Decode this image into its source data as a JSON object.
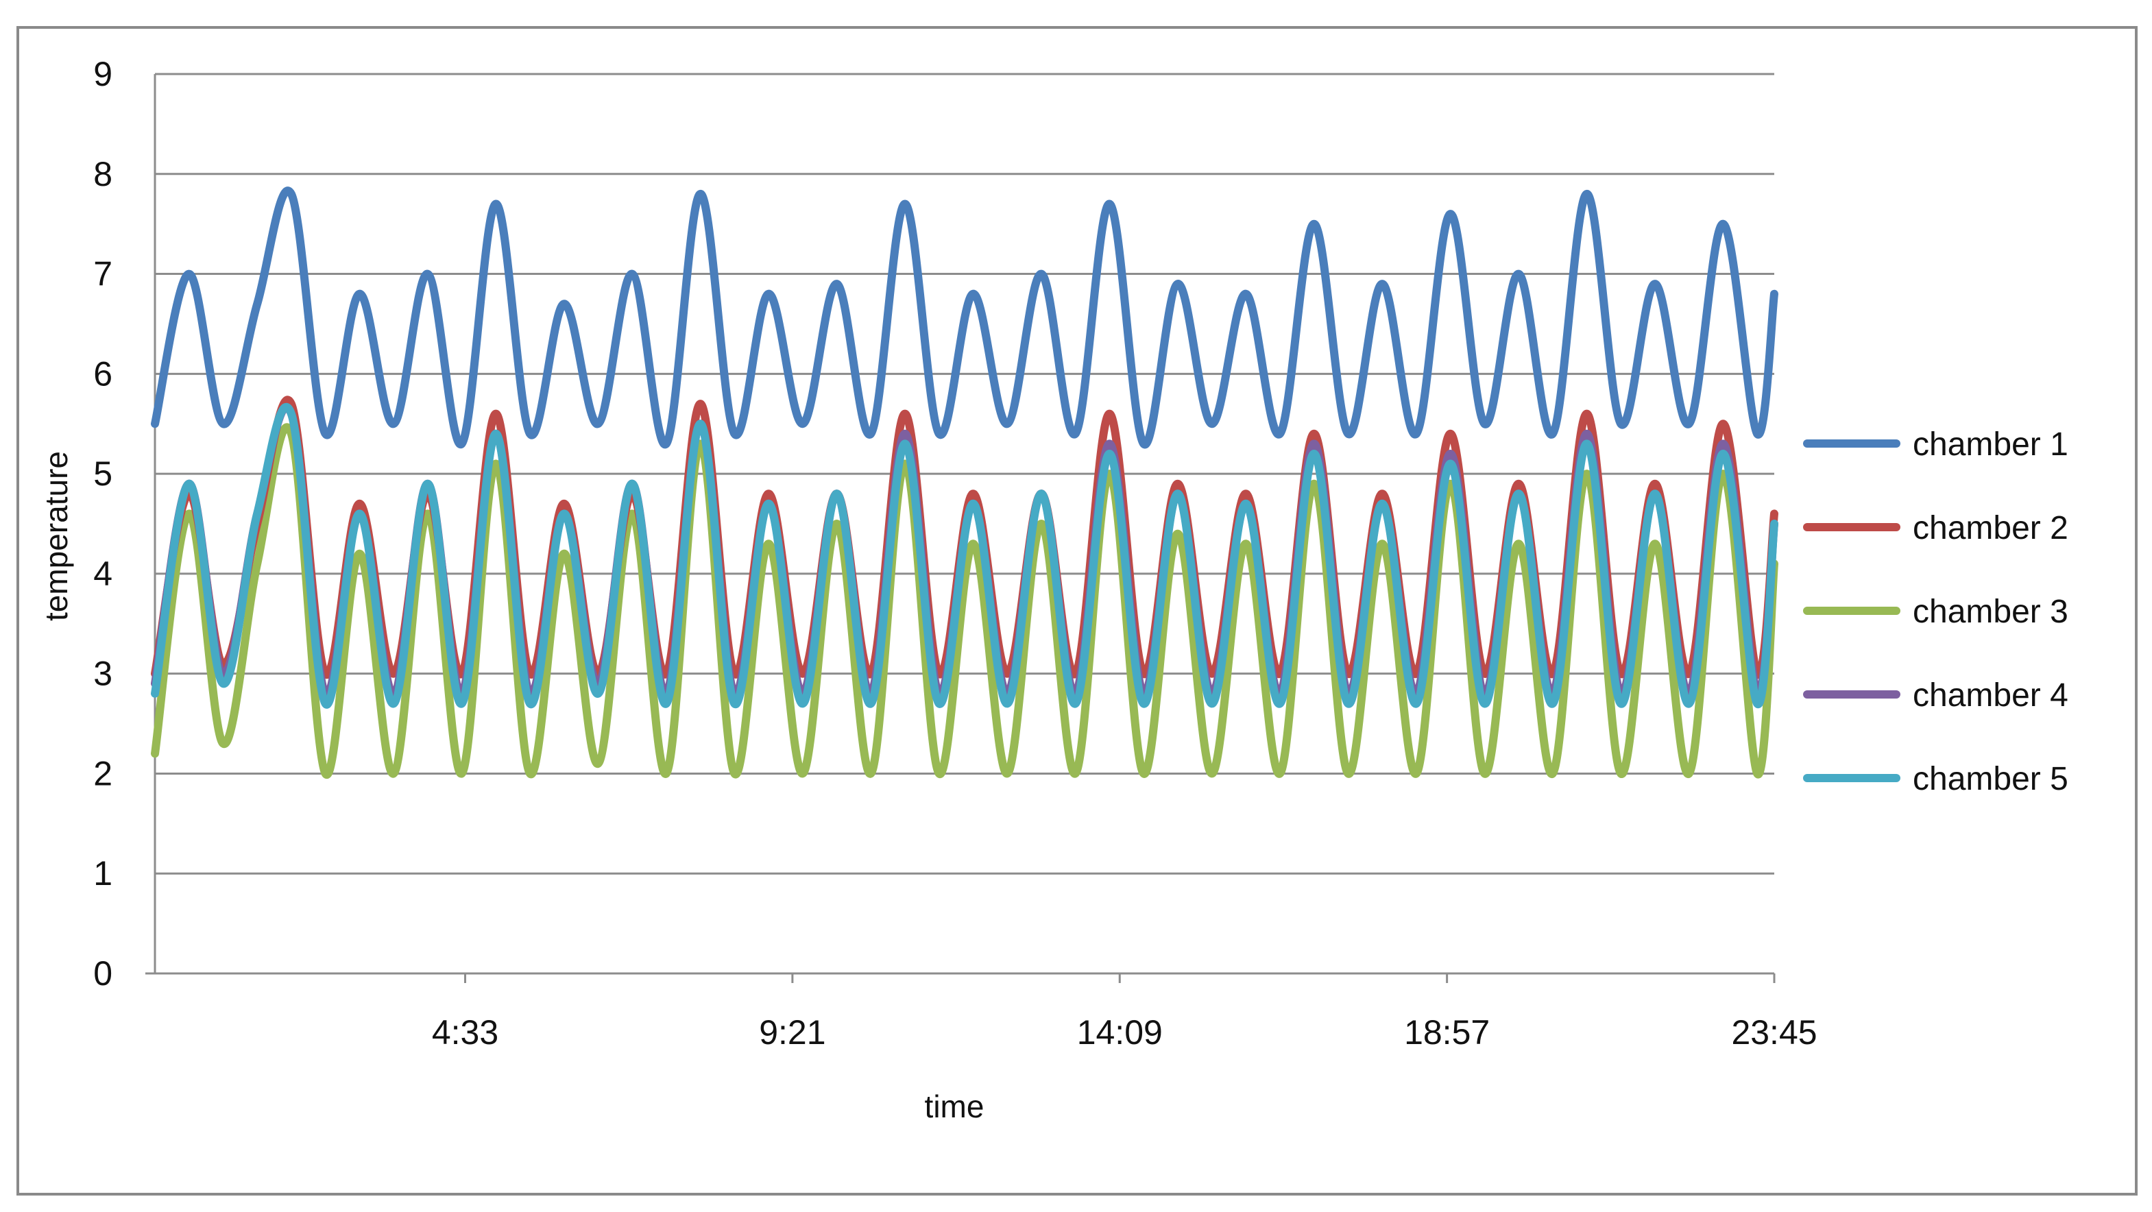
{
  "chart_data": {
    "type": "line",
    "xlabel": "time",
    "ylabel": "temperature",
    "ylim": [
      0,
      9
    ],
    "yticks": [
      0,
      1,
      2,
      3,
      4,
      5,
      6,
      7,
      8,
      9
    ],
    "x_tick_labels": [
      "4:33",
      "9:21",
      "14:09",
      "18:57",
      "23:45"
    ],
    "grid": true,
    "legend_position": "right",
    "x": [
      "0:00",
      "0:30",
      "1:00",
      "1:30",
      "2:00",
      "2:30",
      "3:00",
      "3:30",
      "4:00",
      "4:30",
      "5:00",
      "5:30",
      "6:00",
      "6:30",
      "7:00",
      "7:30",
      "8:00",
      "8:30",
      "9:00",
      "9:30",
      "10:00",
      "10:30",
      "11:00",
      "11:30",
      "12:00",
      "12:30",
      "13:00",
      "13:30",
      "14:00",
      "14:30",
      "15:00",
      "15:30",
      "16:00",
      "16:30",
      "17:00",
      "17:30",
      "18:00",
      "18:30",
      "19:00",
      "19:30",
      "20:00",
      "20:30",
      "21:00",
      "21:30",
      "22:00",
      "22:30",
      "23:00",
      "23:30",
      "23:45"
    ],
    "series": [
      {
        "name": "chamber 1",
        "color": "#4a7ebb",
        "values": [
          5.5,
          7.0,
          5.5,
          6.7,
          7.8,
          5.4,
          6.8,
          5.5,
          7.0,
          5.3,
          7.7,
          5.4,
          6.7,
          5.5,
          7.0,
          5.3,
          7.8,
          5.4,
          6.8,
          5.5,
          6.9,
          5.4,
          7.7,
          5.4,
          6.8,
          5.5,
          7.0,
          5.4,
          7.7,
          5.3,
          6.9,
          5.5,
          6.8,
          5.4,
          7.5,
          5.4,
          6.9,
          5.4,
          7.6,
          5.5,
          7.0,
          5.4,
          7.8,
          5.5,
          6.9,
          5.5,
          7.5,
          5.4,
          6.8
        ]
      },
      {
        "name": "chamber 2",
        "color": "#be4b48",
        "values": [
          3.0,
          4.8,
          3.1,
          4.5,
          5.7,
          3.0,
          4.7,
          3.0,
          4.8,
          3.0,
          5.6,
          3.0,
          4.7,
          3.0,
          4.8,
          3.0,
          5.7,
          3.0,
          4.8,
          3.0,
          4.8,
          3.0,
          5.6,
          3.0,
          4.8,
          3.0,
          4.8,
          3.0,
          5.6,
          3.0,
          4.9,
          3.0,
          4.8,
          3.0,
          5.4,
          3.0,
          4.8,
          3.0,
          5.4,
          3.0,
          4.9,
          3.0,
          5.6,
          3.0,
          4.9,
          3.0,
          5.5,
          3.0,
          4.6
        ]
      },
      {
        "name": "chamber 3",
        "color": "#98b954",
        "values": [
          2.2,
          4.6,
          2.3,
          4.1,
          5.4,
          2.0,
          4.2,
          2.0,
          4.6,
          2.0,
          5.1,
          2.0,
          4.2,
          2.1,
          4.6,
          2.0,
          5.3,
          2.0,
          4.3,
          2.0,
          4.5,
          2.0,
          5.1,
          2.0,
          4.3,
          2.0,
          4.5,
          2.0,
          5.0,
          2.0,
          4.4,
          2.0,
          4.3,
          2.0,
          4.9,
          2.0,
          4.3,
          2.0,
          4.9,
          2.0,
          4.3,
          2.0,
          5.0,
          2.0,
          4.3,
          2.0,
          5.0,
          2.0,
          4.1
        ]
      },
      {
        "name": "chamber 4",
        "color": "#7d60a0",
        "values": [
          2.9,
          4.9,
          3.0,
          4.6,
          5.6,
          2.8,
          4.6,
          2.8,
          4.9,
          2.8,
          5.4,
          2.8,
          4.6,
          2.9,
          4.9,
          2.8,
          5.5,
          2.8,
          4.7,
          2.8,
          4.8,
          2.8,
          5.4,
          2.8,
          4.7,
          2.8,
          4.8,
          2.8,
          5.3,
          2.8,
          4.8,
          2.8,
          4.7,
          2.8,
          5.3,
          2.8,
          4.7,
          2.8,
          5.2,
          2.8,
          4.8,
          2.8,
          5.4,
          2.8,
          4.8,
          2.8,
          5.3,
          2.8,
          4.5
        ]
      },
      {
        "name": "chamber 5",
        "color": "#46aac5",
        "values": [
          2.8,
          4.9,
          2.9,
          4.6,
          5.6,
          2.7,
          4.6,
          2.7,
          4.9,
          2.7,
          5.4,
          2.7,
          4.6,
          2.8,
          4.9,
          2.7,
          5.5,
          2.7,
          4.7,
          2.7,
          4.8,
          2.7,
          5.3,
          2.7,
          4.7,
          2.7,
          4.8,
          2.7,
          5.2,
          2.7,
          4.8,
          2.7,
          4.7,
          2.7,
          5.2,
          2.7,
          4.7,
          2.7,
          5.1,
          2.7,
          4.8,
          2.7,
          5.3,
          2.7,
          4.8,
          2.7,
          5.2,
          2.7,
          4.5
        ]
      }
    ]
  }
}
